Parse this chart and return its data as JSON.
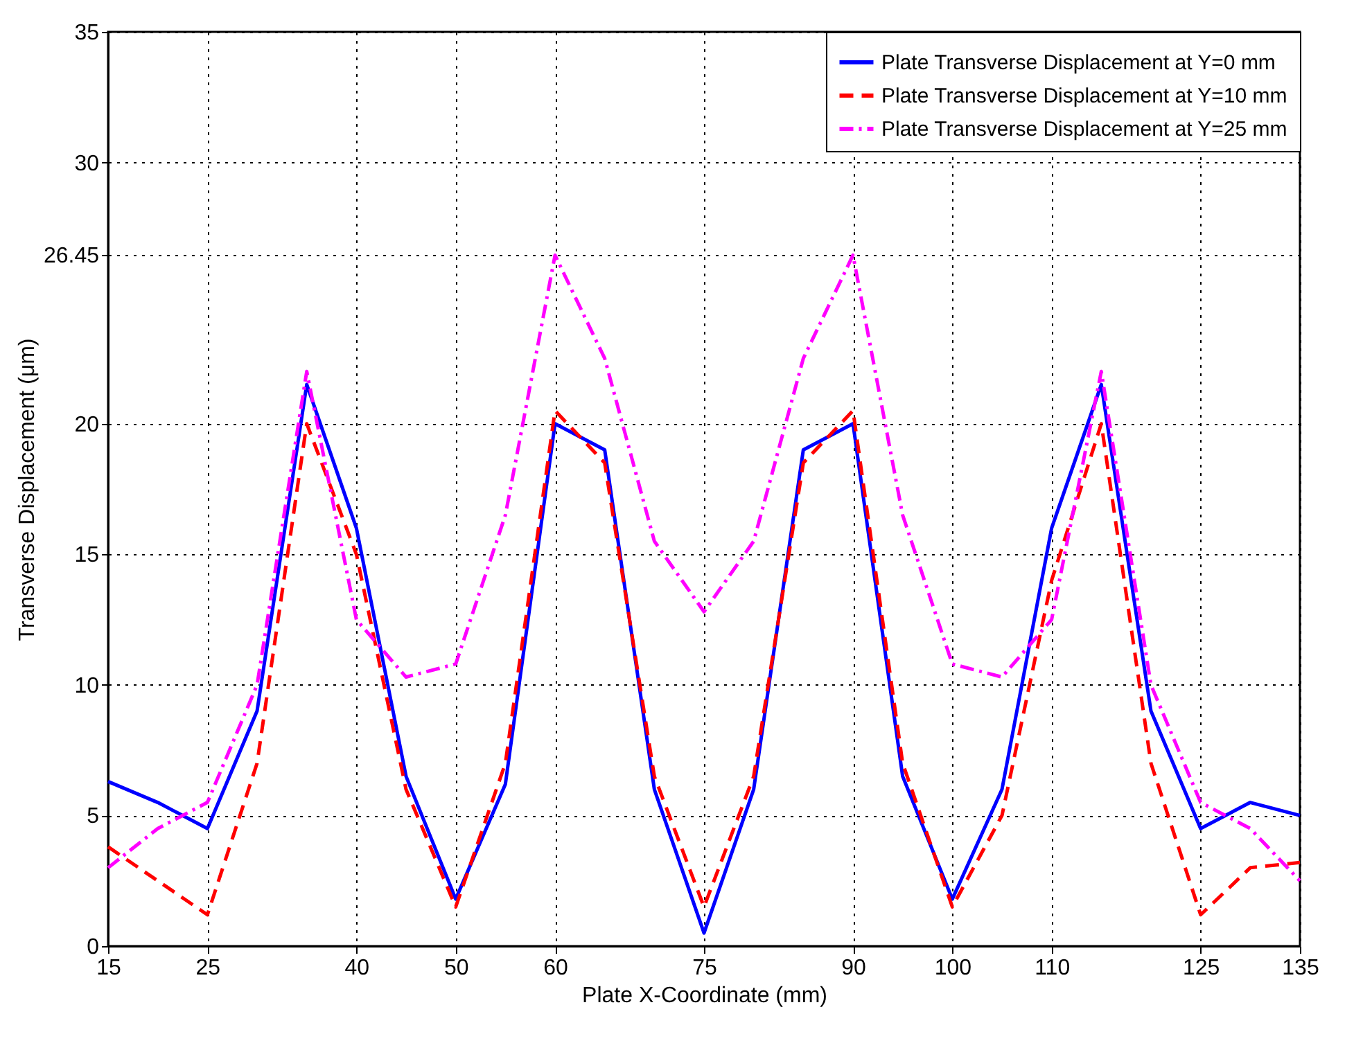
{
  "chart_data": {
    "type": "line",
    "xlabel": "Plate X-Coordinate (mm)",
    "ylabel": "Transverse Displacement (μm)",
    "x": [
      15,
      20,
      25,
      30,
      35,
      40,
      45,
      50,
      55,
      60,
      65,
      70,
      75,
      80,
      85,
      90,
      95,
      100,
      105,
      110,
      115,
      120,
      125,
      130,
      135
    ],
    "series": [
      {
        "name": "Plate Transverse Displacement at Y=0 mm",
        "color": "#0000ff",
        "line_style": "solid",
        "values": [
          6.3,
          5.5,
          4.5,
          9,
          21.5,
          16,
          6.5,
          1.8,
          6.2,
          20,
          19,
          6,
          0.5,
          6,
          19,
          20,
          6.5,
          1.8,
          6,
          16,
          21.5,
          9,
          4.5,
          5.5,
          5
        ]
      },
      {
        "name": "Plate Transverse Displacement at Y=10 mm",
        "color": "#ff0000",
        "line_style": "dashed",
        "values": [
          3.8,
          2.5,
          1.2,
          7,
          20,
          15,
          6,
          1.5,
          7,
          20.5,
          18.5,
          6.5,
          1.5,
          6.5,
          18.5,
          20.5,
          7,
          1.5,
          5,
          14,
          20,
          7,
          1.2,
          3,
          3.2
        ]
      },
      {
        "name": "Plate Transverse Displacement at Y=25 mm",
        "color": "#ff00ff",
        "line_style": "dashdot",
        "values": [
          3,
          4.5,
          5.5,
          10,
          22,
          12.5,
          10.3,
          10.8,
          16.5,
          26.45,
          22.5,
          15.5,
          12.8,
          15.5,
          22.5,
          26.45,
          16.5,
          10.8,
          10.3,
          12.5,
          22,
          10,
          5.5,
          4.5,
          2.5
        ]
      }
    ],
    "xlim": [
      15,
      135
    ],
    "xticks": [
      15,
      25,
      40,
      50,
      60,
      75,
      90,
      100,
      110,
      125,
      135
    ],
    "ylim": [
      0,
      35
    ],
    "yticks": [
      0,
      5,
      10,
      15,
      20,
      {
        "value": 26.45,
        "label": "26.45"
      },
      30,
      35
    ],
    "grid": true,
    "legend": "top right",
    "marker": "none"
  }
}
